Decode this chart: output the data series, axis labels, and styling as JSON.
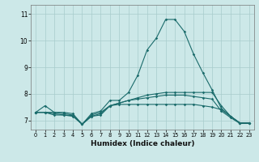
{
  "title": "",
  "xlabel": "Humidex (Indice chaleur)",
  "ylabel": "",
  "bg_color": "#cce8e8",
  "line_color": "#1a6b6b",
  "grid_color": "#a8cccc",
  "xlim": [
    -0.5,
    23.5
  ],
  "ylim": [
    6.65,
    11.35
  ],
  "yticks": [
    7,
    8,
    9,
    10,
    11
  ],
  "xticks": [
    0,
    1,
    2,
    3,
    4,
    5,
    6,
    7,
    8,
    9,
    10,
    11,
    12,
    13,
    14,
    15,
    16,
    17,
    18,
    19,
    20,
    21,
    22,
    23
  ],
  "lines": [
    [
      7.3,
      7.55,
      7.3,
      7.3,
      7.25,
      6.85,
      7.25,
      7.35,
      7.75,
      7.75,
      8.05,
      8.7,
      9.65,
      10.1,
      10.8,
      10.8,
      10.35,
      9.5,
      8.8,
      8.15,
      7.45,
      7.15,
      6.9,
      6.9
    ],
    [
      7.3,
      7.3,
      7.3,
      7.25,
      7.2,
      6.85,
      7.2,
      7.3,
      7.55,
      7.6,
      7.6,
      7.6,
      7.6,
      7.6,
      7.6,
      7.6,
      7.6,
      7.6,
      7.55,
      7.5,
      7.4,
      7.15,
      6.9,
      6.9
    ],
    [
      7.3,
      7.3,
      7.25,
      7.2,
      7.18,
      6.85,
      7.15,
      7.25,
      7.55,
      7.65,
      7.75,
      7.85,
      7.95,
      8.0,
      8.05,
      8.05,
      8.05,
      8.05,
      8.05,
      8.05,
      7.55,
      7.15,
      6.9,
      6.9
    ],
    [
      7.3,
      7.3,
      7.2,
      7.2,
      7.15,
      6.85,
      7.15,
      7.2,
      7.55,
      7.65,
      7.75,
      7.8,
      7.85,
      7.9,
      7.95,
      7.95,
      7.95,
      7.9,
      7.85,
      7.8,
      7.35,
      7.1,
      6.88,
      6.88
    ]
  ]
}
